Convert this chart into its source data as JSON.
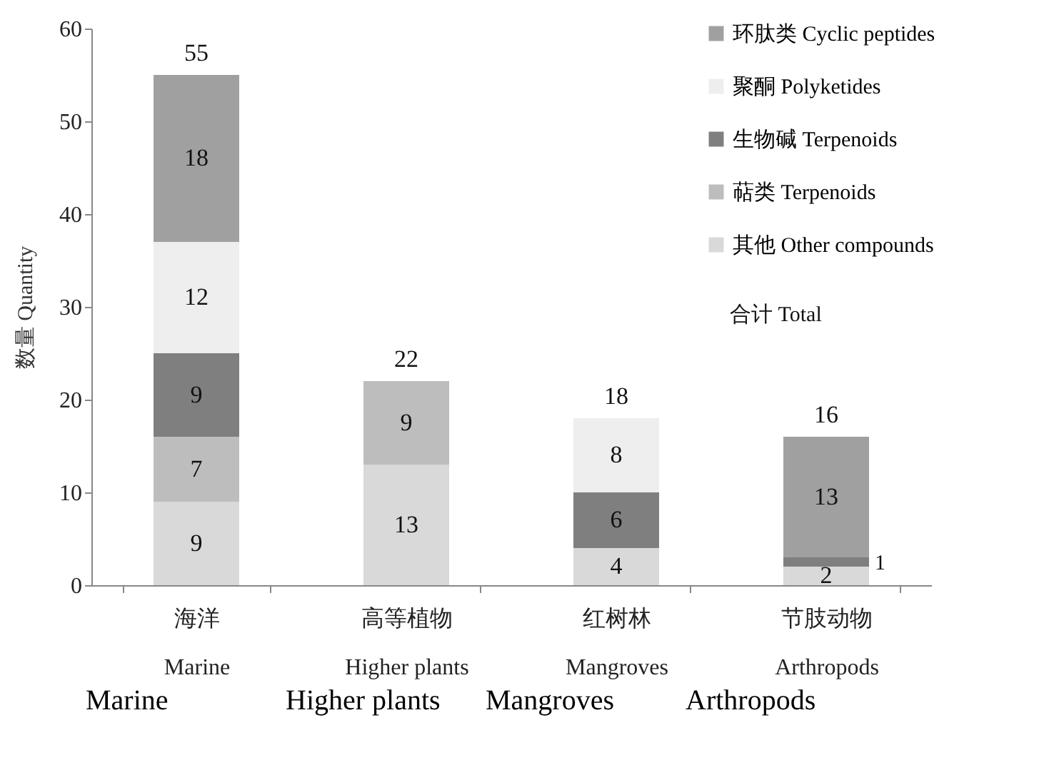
{
  "chart_data": {
    "type": "bar",
    "stacked": true,
    "ylabel": "数量 Quantity",
    "categories": [
      "海洋\nMarine",
      "高等植物\nHigher plants",
      "红树林\nMangroves",
      "节肢动物\nArthropods"
    ],
    "series": [
      {
        "name": "其他 Other compounds",
        "color": "#d9d9d9",
        "values": [
          9,
          13,
          4,
          2
        ]
      },
      {
        "name": "萜类 Terpenoids",
        "color": "#bdbdbd",
        "values": [
          7,
          9,
          null,
          null
        ]
      },
      {
        "name": "生物碱 Terpenoids",
        "color": "#7f7f7f",
        "values": [
          9,
          null,
          6,
          1
        ]
      },
      {
        "name": "聚酮 Polyketides",
        "color": "#eeeeee",
        "values": [
          12,
          null,
          8,
          null
        ]
      },
      {
        "name": "环肽类 Cyclic peptides",
        "color": "#a0a0a0",
        "values": [
          18,
          null,
          null,
          13
        ]
      }
    ],
    "totals": [
      "55",
      "22",
      "18",
      "16"
    ],
    "data_labels": true,
    "ylim": [
      0,
      60
    ],
    "yticks": [
      0,
      10,
      20,
      30,
      40,
      50,
      60
    ],
    "grid": false,
    "legend": "top right",
    "annotations": [
      "合计 Total",
      "Marine",
      "Higher plants",
      "Mangroves",
      "Arthropods"
    ]
  }
}
